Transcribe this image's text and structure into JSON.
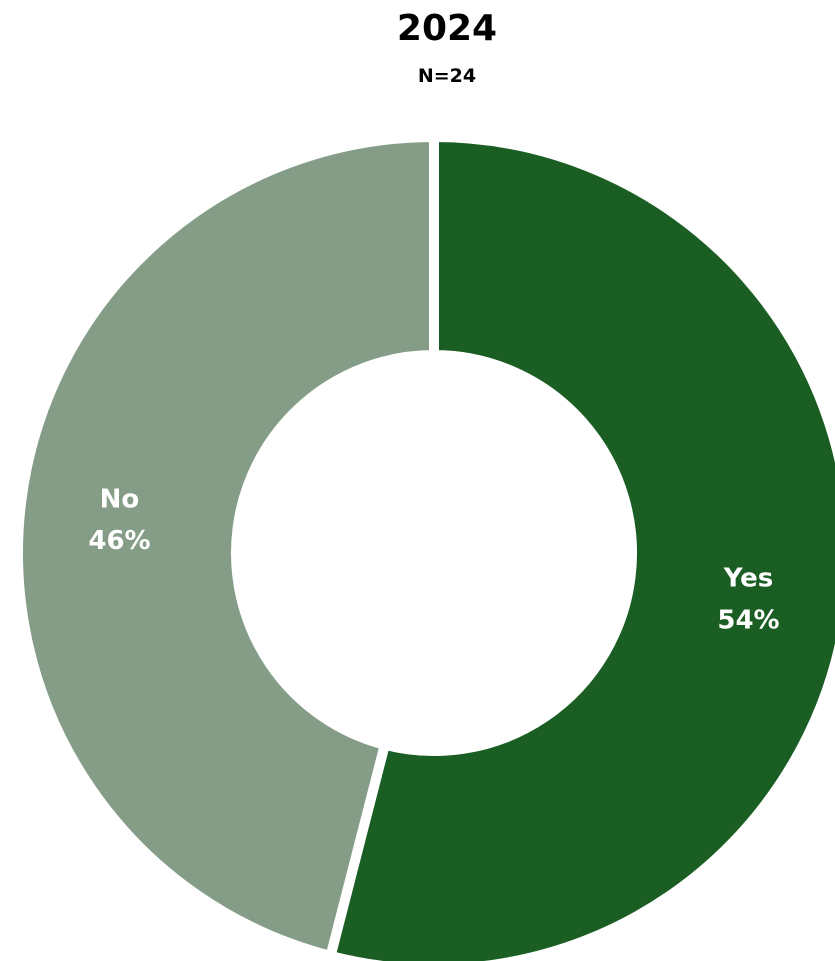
{
  "chart_data": {
    "type": "pie",
    "title": "2024",
    "subtitle": "N=24",
    "slices": [
      {
        "label": "Yes",
        "value": 54,
        "value_label": "54%",
        "color": "#1a5e23"
      },
      {
        "label": "No",
        "value": 46,
        "value_label": "46%",
        "color": "#859d87"
      }
    ],
    "legend": "none",
    "title_color": "#000000",
    "label_color": "#ffffff"
  }
}
